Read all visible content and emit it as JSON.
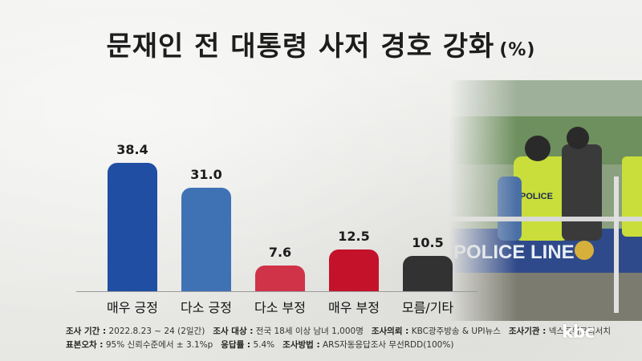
{
  "chart_data": {
    "type": "bar",
    "title": "문재인 전 대통령 사저 경호 강화",
    "unit": "(%)",
    "categories": [
      "매우 긍정",
      "다소 긍정",
      "다소 부정",
      "매우 부정",
      "모름/기타"
    ],
    "values": [
      38.4,
      31.0,
      7.6,
      12.5,
      10.5
    ],
    "value_labels": [
      "38.4",
      "31.0",
      "7.6",
      "12.5",
      "10.5"
    ],
    "colors": [
      "#1f4ea3",
      "#3f72b5",
      "#d03247",
      "#c4122a",
      "#323232"
    ],
    "ylim": [
      0,
      40
    ],
    "grid": false
  },
  "photo": {
    "police_line_text": "POLICE LINE",
    "vest_text": "POLICE"
  },
  "footer": {
    "line1": [
      {
        "label": "조사 기간 :",
        "value": "2022.8.23 ~ 24 (2일간)"
      },
      {
        "label": "조사 대상 :",
        "value": "전국 18세 이상 남녀 1,000명"
      },
      {
        "label": "조사의뢰 :",
        "value": "KBC광주방송 & UPI뉴스"
      },
      {
        "label": "조사기관 :",
        "value": "넥스트위크리서치"
      }
    ],
    "line2": [
      {
        "label": "표본오차 :",
        "value": "95% 신뢰수준에서 ± 3.1%p"
      },
      {
        "label": "응답률 :",
        "value": "5.4%"
      },
      {
        "label": "조사방법 :",
        "value": "ARS자동응답조사 무선RDD(100%)"
      }
    ]
  },
  "logo": "kbc"
}
